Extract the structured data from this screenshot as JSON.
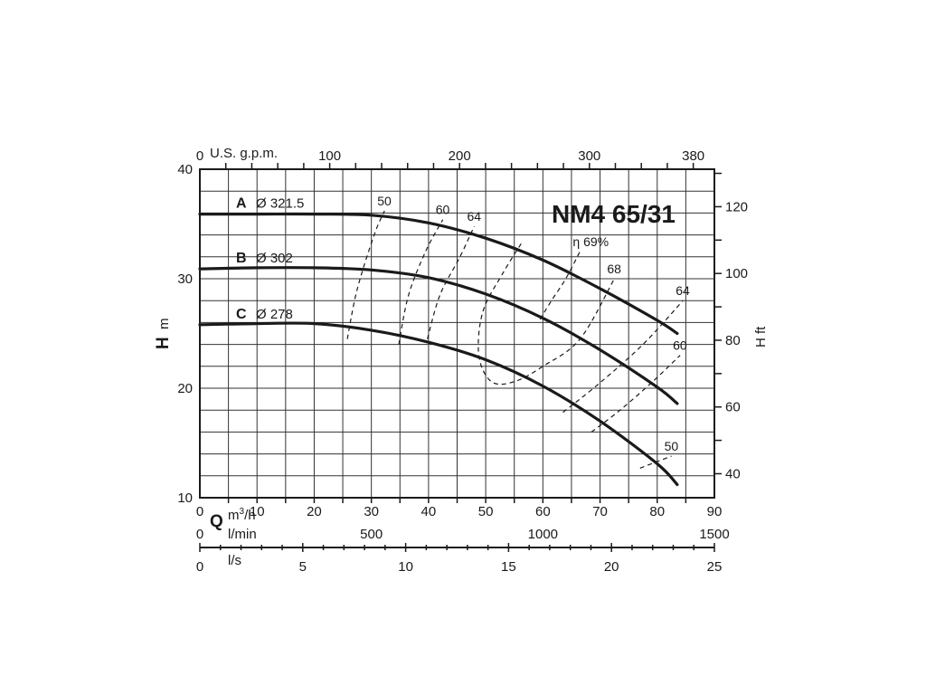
{
  "chart_data": {
    "type": "line",
    "title": "NM4 65/31",
    "x_axis": {
      "unit_label": "m³/h",
      "letter": "Q",
      "range": [
        0,
        90
      ],
      "ticks": [
        "0",
        "10",
        "20",
        "30",
        "40",
        "50",
        "60",
        "70",
        "80",
        "90"
      ]
    },
    "x_axis_lmin": {
      "unit_label": "l/min",
      "range": [
        0,
        1500
      ],
      "ticks": [
        "0",
        "500",
        "1000",
        "1500"
      ]
    },
    "x_axis_ls": {
      "unit_label": "l/s",
      "range": [
        0,
        25
      ],
      "ticks": [
        "0",
        "5",
        "10",
        "15",
        "20",
        "25"
      ]
    },
    "x_axis_top": {
      "unit_label": "U.S. g.p.m.",
      "ticks": [
        "100",
        "200",
        "300",
        "380"
      ],
      "zero_label": "0"
    },
    "y_axis_left": {
      "letter": "H",
      "unit": "m",
      "range": [
        10,
        40
      ],
      "ticks": [
        "10",
        "20",
        "30",
        "40"
      ]
    },
    "y_axis_right": {
      "label": "H ft",
      "ticks": [
        "40",
        "60",
        "80",
        "100",
        "120"
      ]
    },
    "grid": true,
    "series": [
      {
        "name": "A",
        "diameter": "Ø 321.5",
        "points": [
          [
            0,
            35.9
          ],
          [
            10,
            35.9
          ],
          [
            20,
            35.9
          ],
          [
            30,
            35.8
          ],
          [
            40,
            35.1
          ],
          [
            50,
            33.7
          ],
          [
            60,
            31.7
          ],
          [
            70,
            29.1
          ],
          [
            80,
            26.2
          ],
          [
            83.5,
            25.0
          ]
        ]
      },
      {
        "name": "B",
        "diameter": "Ø 302",
        "points": [
          [
            0,
            30.9
          ],
          [
            10,
            31.0
          ],
          [
            20,
            31.0
          ],
          [
            30,
            30.8
          ],
          [
            40,
            30.1
          ],
          [
            50,
            28.6
          ],
          [
            60,
            26.4
          ],
          [
            70,
            23.5
          ],
          [
            80,
            20.1
          ],
          [
            83.5,
            18.6
          ]
        ]
      },
      {
        "name": "C",
        "diameter": "Ø 278",
        "points": [
          [
            0,
            25.8
          ],
          [
            10,
            25.9
          ],
          [
            20,
            25.9
          ],
          [
            30,
            25.3
          ],
          [
            40,
            24.2
          ],
          [
            50,
            22.6
          ],
          [
            60,
            20.2
          ],
          [
            70,
            17.0
          ],
          [
            80,
            13.1
          ],
          [
            83.5,
            11.2
          ]
        ]
      }
    ],
    "efficiency_curves": [
      {
        "label": "50",
        "points": [
          [
            25.8,
            24.5
          ],
          [
            27.5,
            29.0
          ],
          [
            30.5,
            34.0
          ],
          [
            32.3,
            36.2
          ]
        ]
      },
      {
        "label": "60",
        "points": [
          [
            34.8,
            24.0
          ],
          [
            36.5,
            28.5
          ],
          [
            39.5,
            32.5
          ],
          [
            42.5,
            35.4
          ]
        ]
      },
      {
        "label": "64",
        "points": [
          [
            39.8,
            24.5
          ],
          [
            42.0,
            28.5
          ],
          [
            45.5,
            32.0
          ],
          [
            48.0,
            34.8
          ]
        ]
      },
      {
        "label": "68",
        "points": [
          [
            56.2,
            33.2
          ],
          [
            53.0,
            30.5
          ],
          [
            49.5,
            27.0
          ],
          [
            48.8,
            23.0
          ],
          [
            51.0,
            20.6
          ],
          [
            55.0,
            20.6
          ],
          [
            60.0,
            22.0
          ],
          [
            66.5,
            24.5
          ],
          [
            72.5,
            30.0
          ]
        ]
      },
      {
        "label": "η 69%",
        "points": [
          [
            59.5,
            26.3
          ],
          [
            61.5,
            28.0
          ],
          [
            64.0,
            30.0
          ],
          [
            66.5,
            32.5
          ]
        ]
      },
      {
        "label": "64",
        "points": [
          [
            63.5,
            17.8
          ],
          [
            70.0,
            20.5
          ],
          [
            77.5,
            24.0
          ],
          [
            84.5,
            28.0
          ]
        ]
      },
      {
        "label": "60",
        "points": [
          [
            68.5,
            16.0
          ],
          [
            73.5,
            18.0
          ],
          [
            79.0,
            20.5
          ],
          [
            84.0,
            23.0
          ]
        ]
      },
      {
        "label": "50",
        "points": [
          [
            77.0,
            12.7
          ],
          [
            82.5,
            13.8
          ]
        ]
      }
    ]
  }
}
